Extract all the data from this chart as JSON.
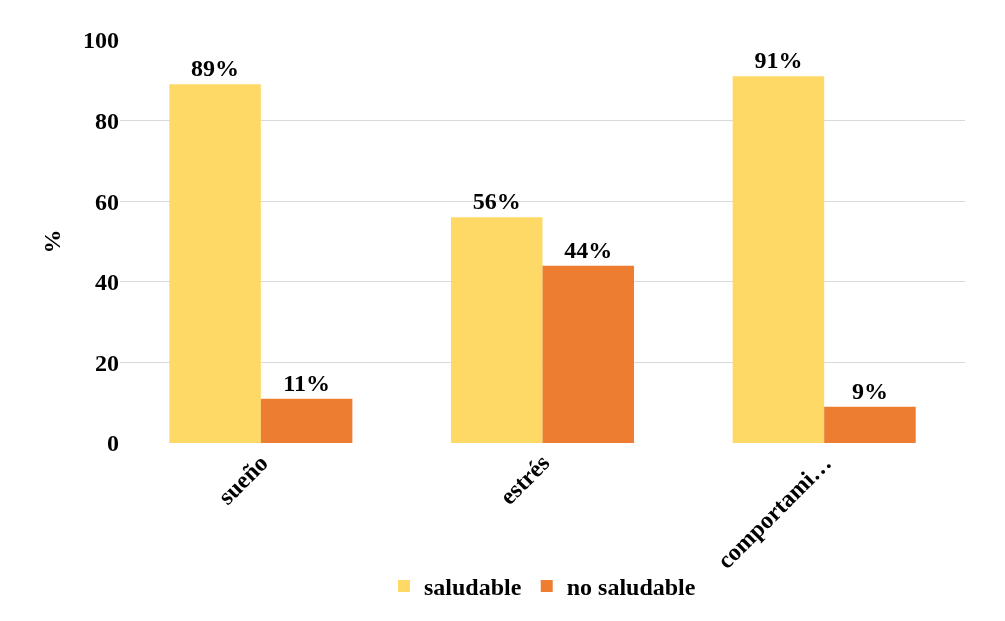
{
  "chart_data": {
    "type": "bar",
    "ylabel": "%",
    "categories": [
      "sueño",
      "estrés",
      "comportami…"
    ],
    "series": [
      {
        "name": "saludable",
        "color": "#ffd966",
        "values": [
          89,
          56,
          91
        ],
        "value_labels": [
          "89%",
          "56%",
          "91%"
        ]
      },
      {
        "name": "no saludable",
        "color": "#ed7d31",
        "values": [
          11,
          44,
          9
        ],
        "value_labels": [
          "11%",
          "44%",
          "9%"
        ]
      }
    ],
    "ylim": [
      0,
      100
    ],
    "yticks": [
      0,
      20,
      40,
      60,
      80,
      100
    ],
    "grid": "y",
    "legend": "bottom"
  }
}
